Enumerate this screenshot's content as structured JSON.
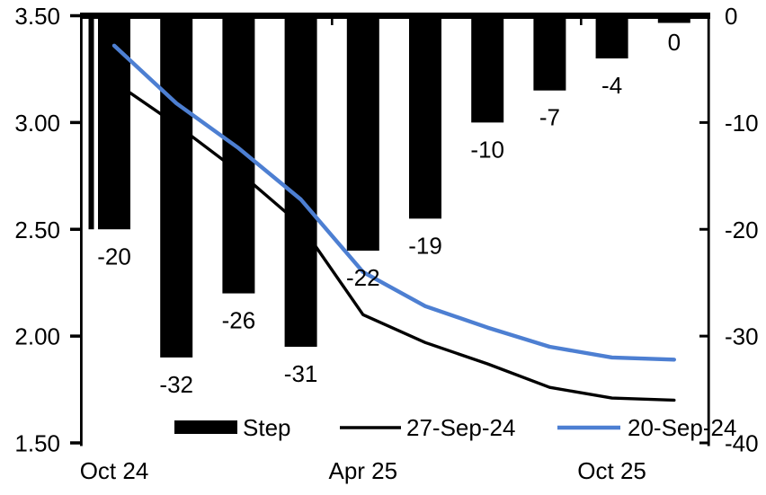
{
  "page": {
    "background": "#ffffff"
  },
  "chart_data": {
    "type": "bar+line",
    "title": "",
    "n_categories": 10,
    "x_labels": [
      {
        "text": "Oct 24",
        "category_index": 0
      },
      {
        "text": "Apr 25",
        "category_index": 4
      },
      {
        "text": "Oct 25",
        "category_index": 8
      }
    ],
    "bar_series": {
      "name": "Step",
      "axis": "right",
      "unit": "bp",
      "color": "#000000",
      "values": [
        -20,
        -32,
        -26,
        -31,
        -22,
        -19,
        -10,
        -7,
        -4,
        0
      ],
      "data_labels": [
        "-20",
        "-32",
        "-26",
        "-31",
        "-22",
        "-19",
        "-10",
        "-7",
        "-4",
        "0"
      ]
    },
    "line_series": [
      {
        "name": "27-Sep-24",
        "axis": "left",
        "color": "#000000",
        "values": [
          3.19,
          2.99,
          2.77,
          2.52,
          2.1,
          1.97,
          1.87,
          1.76,
          1.71,
          1.7
        ]
      },
      {
        "name": "20-Sep-24",
        "axis": "left",
        "color": "#4D7FD2",
        "values": [
          3.36,
          3.09,
          2.88,
          2.64,
          2.3,
          2.14,
          2.04,
          1.95,
          1.9,
          1.89
        ]
      }
    ],
    "left_axis": {
      "min": 1.5,
      "max": 3.5,
      "tick_labels": [
        "3.50",
        "3.00",
        "2.50",
        "2.00",
        "1.50"
      ]
    },
    "right_axis": {
      "min": -40,
      "max": 0,
      "tick_labels": [
        "0",
        "-10",
        "-20",
        "-30",
        "-40"
      ]
    },
    "legend": [
      {
        "label": "Step",
        "swatch": "bar",
        "color": "#000000"
      },
      {
        "label": "27-Sep-24",
        "swatch": "line",
        "color": "#000000"
      },
      {
        "label": "20-Sep-24",
        "swatch": "line",
        "color": "#4D7FD2"
      }
    ],
    "grid": false,
    "legend_position": "bottom-inside"
  }
}
